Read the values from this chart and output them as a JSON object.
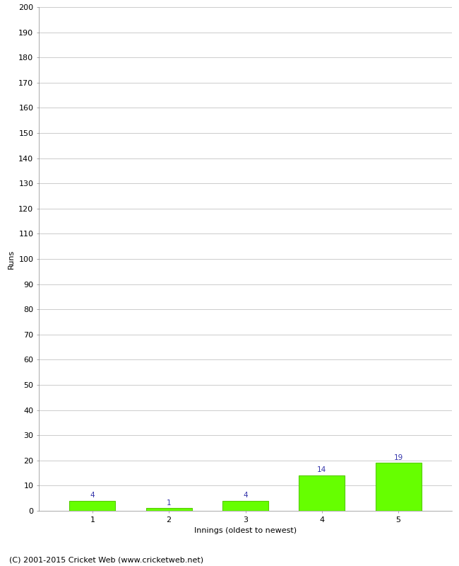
{
  "categories": [
    "1",
    "2",
    "3",
    "4",
    "5"
  ],
  "values": [
    4,
    1,
    4,
    14,
    19
  ],
  "bar_color": "#66ff00",
  "bar_edge_color": "#55cc00",
  "xlabel": "Innings (oldest to newest)",
  "ylabel": "Runs",
  "ylim": [
    0,
    200
  ],
  "ytick_step": 10,
  "yticks": [
    0,
    10,
    20,
    30,
    40,
    50,
    60,
    70,
    80,
    90,
    100,
    110,
    120,
    130,
    140,
    150,
    160,
    170,
    180,
    190,
    200
  ],
  "label_color": "#3333aa",
  "label_fontsize": 7.5,
  "axis_label_fontsize": 8,
  "tick_fontsize": 8,
  "background_color": "#ffffff",
  "grid_color": "#cccccc",
  "footer_text": "(C) 2001-2015 Cricket Web (www.cricketweb.net)",
  "footer_fontsize": 8
}
